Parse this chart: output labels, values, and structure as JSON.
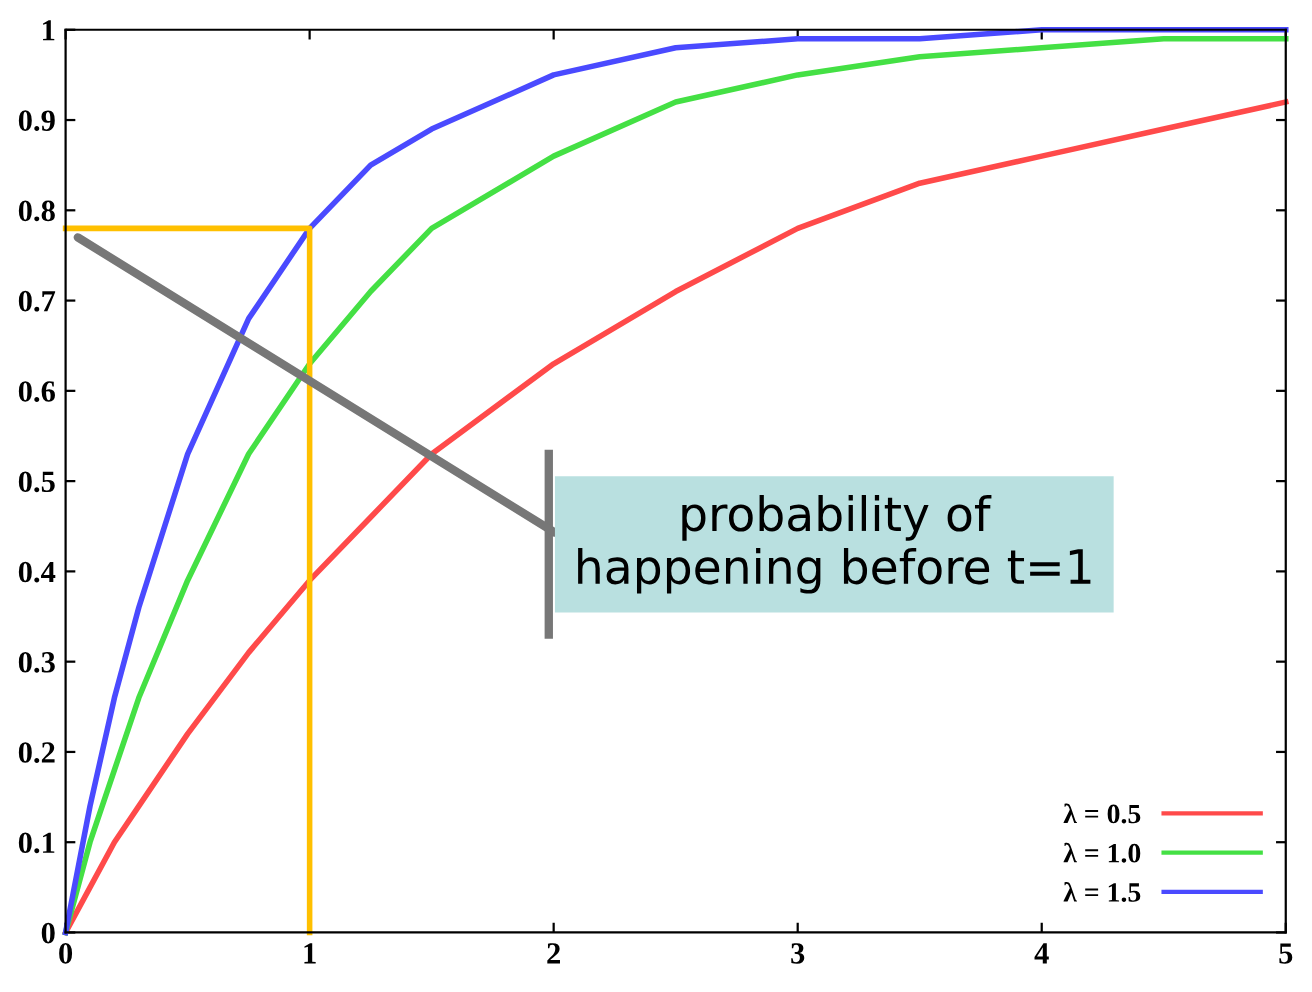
{
  "chart_data": {
    "type": "line",
    "x": [
      0,
      0.1,
      0.2,
      0.3,
      0.5,
      0.75,
      1,
      1.25,
      1.5,
      2,
      2.5,
      3,
      3.5,
      4,
      4.5,
      5
    ],
    "series": [
      {
        "name": "λ = 0.5",
        "color": "#ff4a4a",
        "values": [
          0,
          0.05,
          0.1,
          0.14,
          0.22,
          0.31,
          0.39,
          0.46,
          0.53,
          0.63,
          0.71,
          0.78,
          0.83,
          0.86,
          0.89,
          0.92
        ]
      },
      {
        "name": "λ = 1.0",
        "color": "#44e044",
        "values": [
          0,
          0.1,
          0.18,
          0.26,
          0.39,
          0.53,
          0.63,
          0.71,
          0.78,
          0.86,
          0.92,
          0.95,
          0.97,
          0.98,
          0.99,
          0.99
        ]
      },
      {
        "name": "λ = 1.5",
        "color": "#4a4aff",
        "values": [
          0,
          0.14,
          0.26,
          0.36,
          0.53,
          0.68,
          0.78,
          0.85,
          0.89,
          0.95,
          0.98,
          0.99,
          0.99,
          1.0,
          1.0,
          1.0
        ]
      },
      {
        "type": "step",
        "color": "#ffc000",
        "x": [
          0,
          1
        ],
        "values": [
          0.78,
          0
        ]
      }
    ],
    "annotations": [
      {
        "text": "probability of\nhappening before t=1",
        "x": 0.05,
        "y": 0.77
      }
    ],
    "xlim": [
      0,
      5
    ],
    "ylim": [
      0,
      1
    ],
    "xticks": [
      0,
      1,
      2,
      3,
      4,
      5
    ],
    "yticks": [
      0,
      0.1,
      0.2,
      0.3,
      0.4,
      0.5,
      0.6,
      0.7,
      0.8,
      0.9,
      1
    ],
    "grid": false,
    "legend": "bottom right",
    "marker": "none",
    "line_style": "solid"
  }
}
